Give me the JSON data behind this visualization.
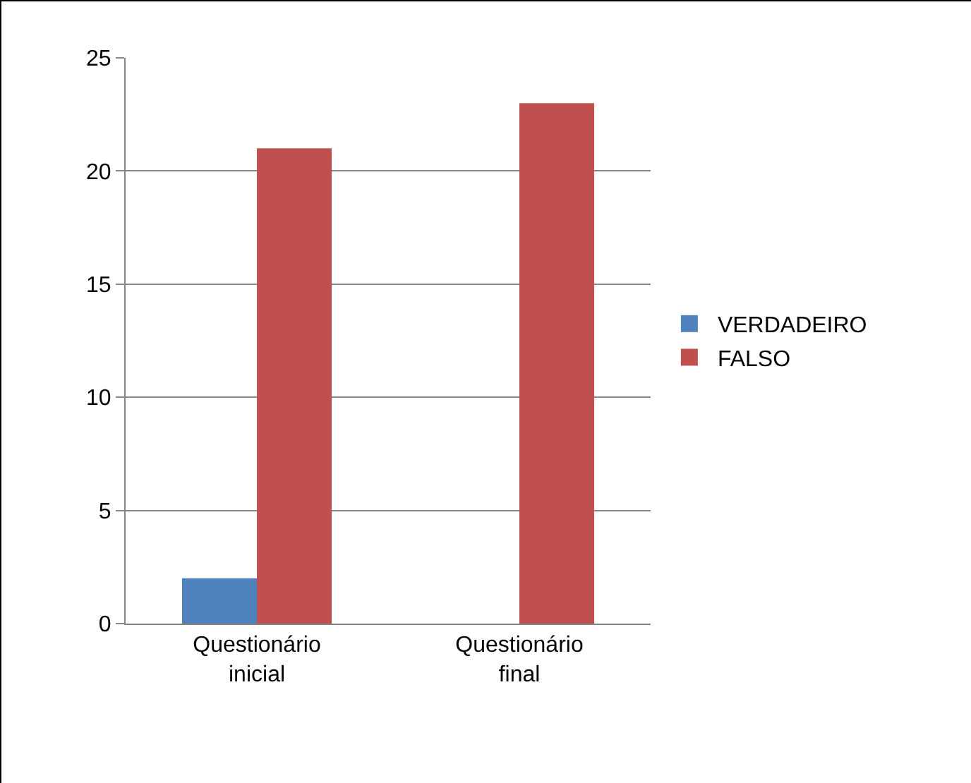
{
  "chart_data": {
    "type": "bar",
    "categories": [
      "Questionário inicial",
      "Questionário final"
    ],
    "series": [
      {
        "name": "VERDADEIRO",
        "color": "#4f81bd",
        "values": [
          2,
          0
        ]
      },
      {
        "name": "FALSO",
        "color": "#c0504d",
        "values": [
          21,
          23
        ]
      }
    ],
    "ylim": [
      0,
      25
    ],
    "yticks": [
      0,
      5,
      10,
      15,
      20,
      25
    ],
    "grid": "y",
    "legend": "right"
  }
}
